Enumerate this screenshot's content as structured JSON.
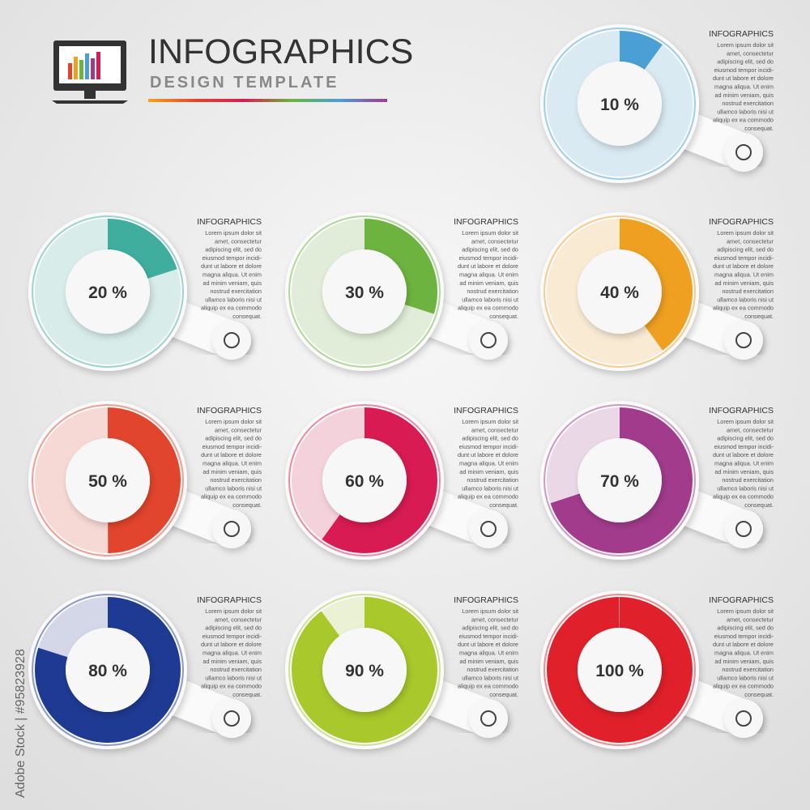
{
  "header": {
    "title": "INFOGRAPHICS",
    "subtitle": "DESIGN TEMPLATE"
  },
  "watermark": "Adobe Stock | #95823928",
  "text_block": {
    "heading": "INFOGRAPHICS",
    "lines": [
      "Lorem ipsum dolor sit",
      "amet, consectetur",
      "adipiscing elit, sed do",
      "eiusmod tempor incidi-",
      "dunt ut labore et dolore",
      "magna aliqua. Ut enim",
      "ad minim veniam, quis",
      "nostrud exercitation",
      "ullamco laboris nisi ut",
      "aliquip ex ea commodo",
      "consequat."
    ]
  },
  "gauges": [
    {
      "value": 10,
      "label": "10 %",
      "color": "#4a9fd4"
    },
    {
      "value": 20,
      "label": "20 %",
      "color": "#3fae9e"
    },
    {
      "value": 30,
      "label": "30 %",
      "color": "#6db33f"
    },
    {
      "value": 40,
      "label": "40 %",
      "color": "#f0a020"
    },
    {
      "value": 50,
      "label": "50 %",
      "color": "#e2452d"
    },
    {
      "value": 60,
      "label": "60 %",
      "color": "#d81b52"
    },
    {
      "value": 70,
      "label": "70 %",
      "color": "#a23b8c"
    },
    {
      "value": 80,
      "label": "80 %",
      "color": "#1f3a93"
    },
    {
      "value": 90,
      "label": "90 %",
      "color": "#a8c82b"
    },
    {
      "value": 100,
      "label": "100 %",
      "color": "#e0202a"
    }
  ]
}
